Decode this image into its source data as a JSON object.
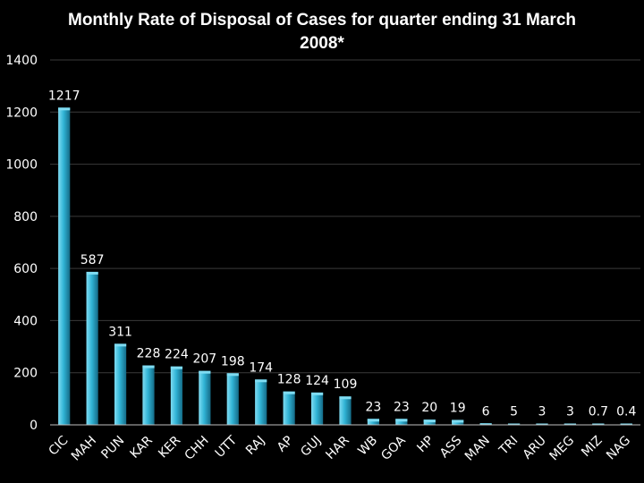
{
  "chart_data": {
    "type": "bar",
    "title_line1": "Monthly Rate of Disposal of Cases for quarter ending 31 March",
    "title_line2": "2008*",
    "categories": [
      "CIC",
      "MAH",
      "PUN",
      "KAR",
      "KER",
      "CHH",
      "UTT",
      "RAJ",
      "AP",
      "GUJ",
      "HAR",
      "WB",
      "GOA",
      "HP",
      "ASS",
      "MAN",
      "TRI",
      "ARU",
      "MEG",
      "MIZ",
      "NAG"
    ],
    "values": [
      1217,
      587,
      311,
      228,
      224,
      207,
      198,
      174,
      128,
      124,
      109,
      23,
      23,
      20,
      19,
      6,
      5,
      3,
      3,
      0.7,
      0.4
    ],
    "value_labels": [
      "1217",
      "587",
      "311",
      "228",
      "224",
      "207",
      "198",
      "174",
      "128",
      "124",
      "109",
      "23",
      "23",
      "20",
      "19",
      "6",
      "5",
      "3",
      "3",
      "0.7",
      "0.4"
    ],
    "yticks": [
      0,
      200,
      400,
      600,
      800,
      1000,
      1200,
      1400
    ],
    "ylim": [
      0,
      1400
    ],
    "xlabel": "",
    "ylabel": "",
    "grid": true,
    "colors": {
      "background": "#000000",
      "bar_light": "#7fdcf2",
      "bar_mid": "#31b4d6",
      "bar_dark": "#146a86",
      "text": "#ffffff"
    }
  }
}
